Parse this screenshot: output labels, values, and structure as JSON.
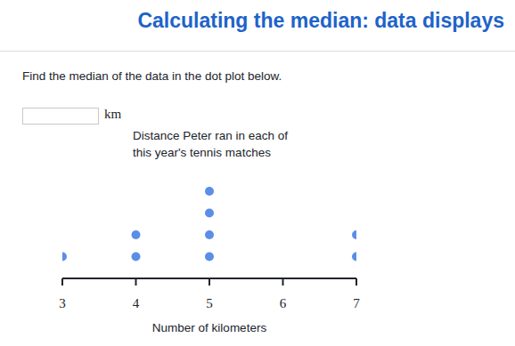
{
  "page": {
    "heading": "Calculating the median: data displays",
    "question": "Find the median of the data in the dot plot below.",
    "unit": "km"
  },
  "chart_data": {
    "type": "dot",
    "title": "Distance Peter ran in each of this year's tennis matches",
    "xlabel": "Number of kilometers",
    "x": [
      3,
      4,
      5,
      6,
      7
    ],
    "values": [
      1,
      2,
      4,
      0,
      2
    ],
    "xlim": [
      3,
      7
    ],
    "xticks": [
      3,
      4,
      5,
      6,
      7
    ],
    "color": "#5b8ee6",
    "tick_labels": "x"
  }
}
